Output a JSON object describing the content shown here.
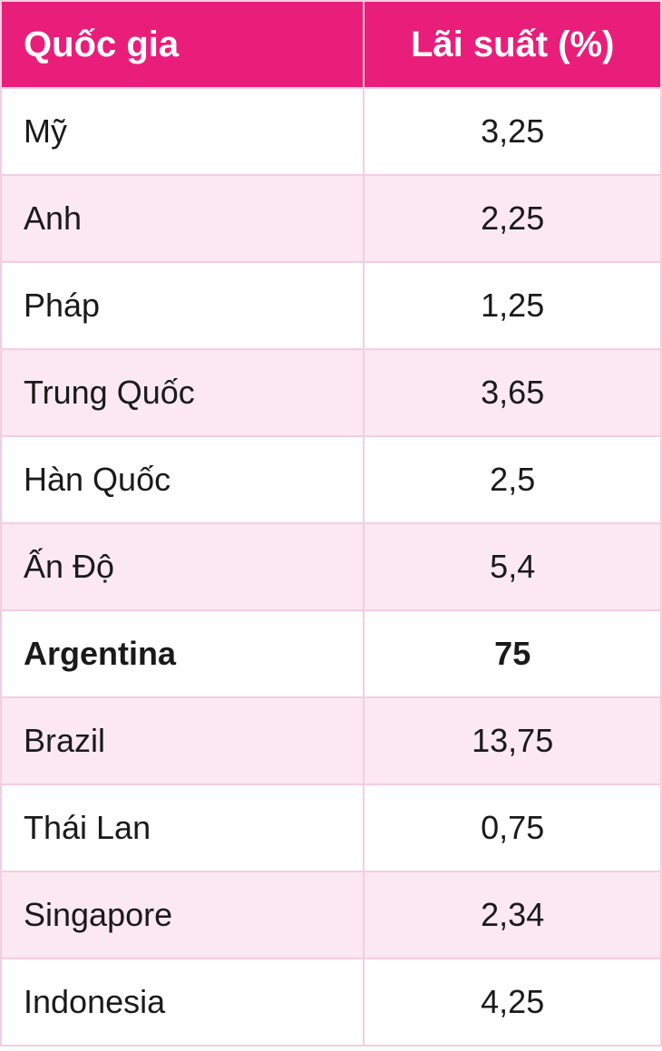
{
  "table": {
    "type": "table",
    "header_bg": "#e91e7a",
    "header_text_color": "#ffffff",
    "row_alt_bg": "#fce8f1",
    "row_bg": "#ffffff",
    "border_color": "#f5cde0",
    "text_color": "#1a1a1a",
    "header_fontsize": 40,
    "cell_fontsize": 36,
    "columns": [
      {
        "label": "Quốc gia",
        "align": "left"
      },
      {
        "label": "Lãi suất (%)",
        "align": "center"
      }
    ],
    "rows": [
      {
        "country": "Mỹ",
        "rate": "3,25",
        "bold": false
      },
      {
        "country": "Anh",
        "rate": "2,25",
        "bold": false
      },
      {
        "country": "Pháp",
        "rate": "1,25",
        "bold": false
      },
      {
        "country": "Trung Quốc",
        "rate": "3,65",
        "bold": false
      },
      {
        "country": "Hàn Quốc",
        "rate": "2,5",
        "bold": false
      },
      {
        "country": "Ấn Độ",
        "rate": "5,4",
        "bold": false
      },
      {
        "country": "Argentina",
        "rate": "75",
        "bold": true
      },
      {
        "country": "Brazil",
        "rate": "13,75",
        "bold": false
      },
      {
        "country": "Thái Lan",
        "rate": "0,75",
        "bold": false
      },
      {
        "country": "Singapore",
        "rate": "2,34",
        "bold": false
      },
      {
        "country": "Indonesia",
        "rate": "4,25",
        "bold": false
      }
    ]
  }
}
